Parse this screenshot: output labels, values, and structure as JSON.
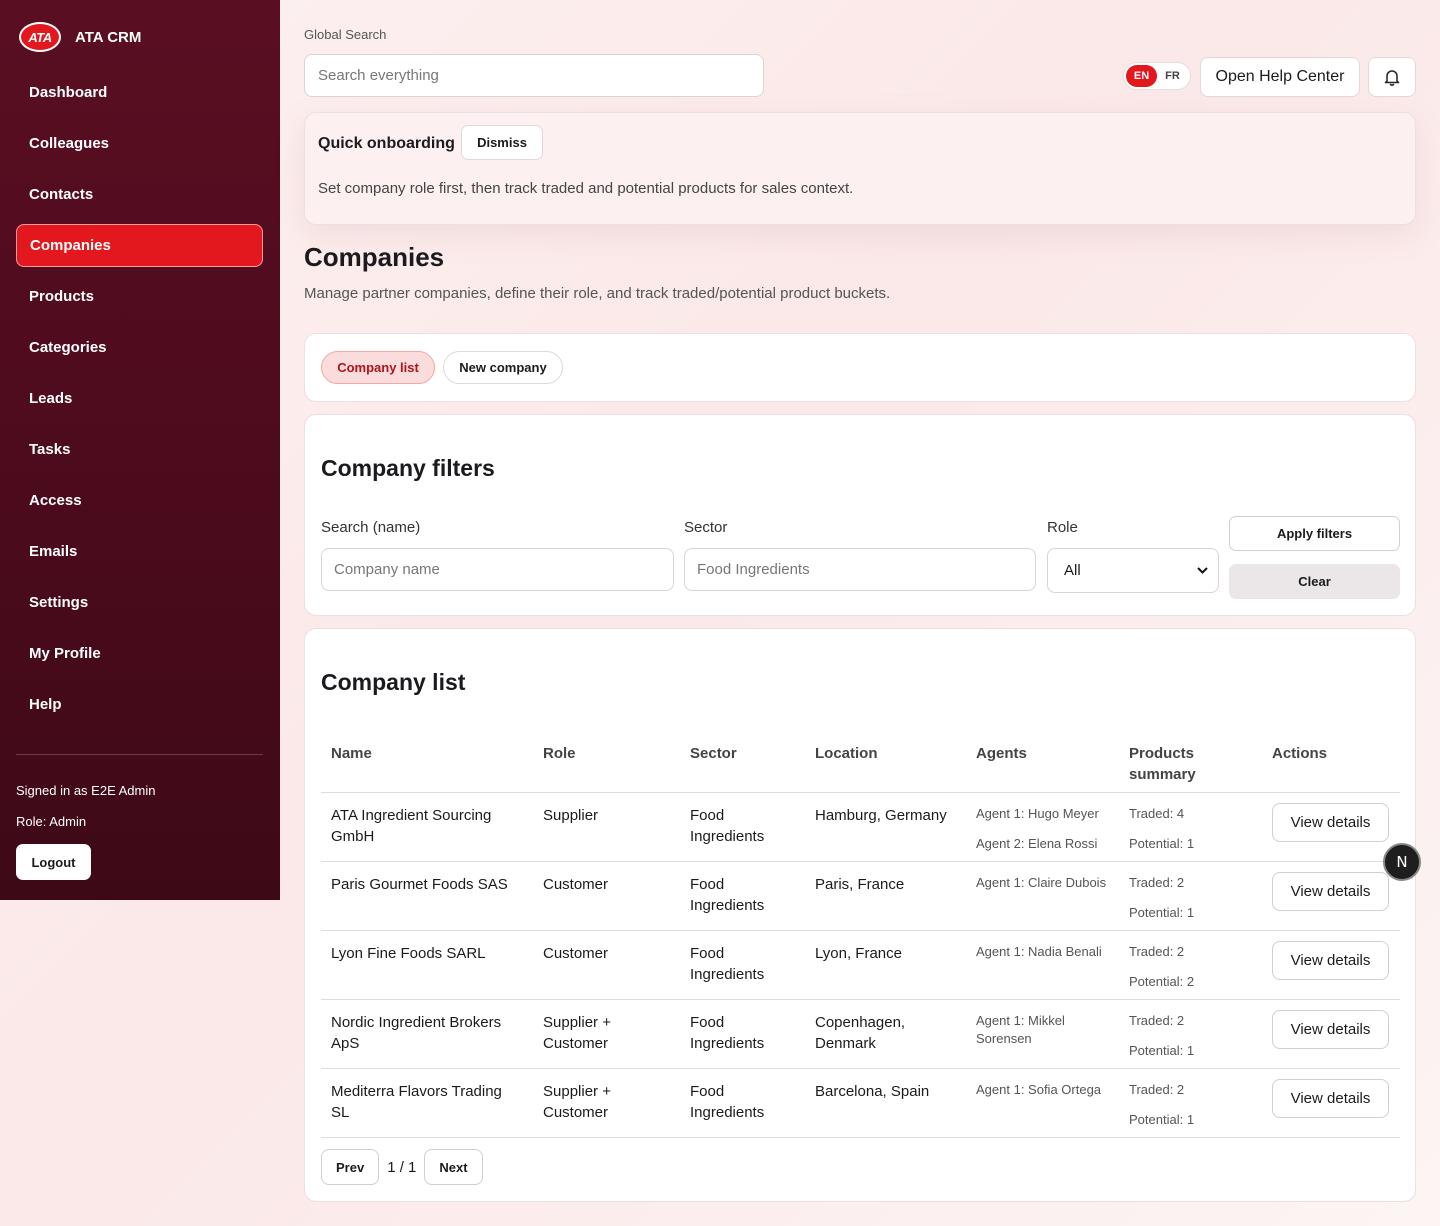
{
  "app": {
    "logo_text": "ATA",
    "name": "ATA CRM"
  },
  "sidebar": {
    "items": [
      {
        "label": "Dashboard"
      },
      {
        "label": "Colleagues"
      },
      {
        "label": "Contacts"
      },
      {
        "label": "Companies",
        "active": true
      },
      {
        "label": "Products"
      },
      {
        "label": "Categories"
      },
      {
        "label": "Leads"
      },
      {
        "label": "Tasks"
      },
      {
        "label": "Access"
      },
      {
        "label": "Emails"
      },
      {
        "label": "Settings"
      },
      {
        "label": "My Profile"
      },
      {
        "label": "Help"
      }
    ],
    "signed_in": "Signed in as E2E Admin",
    "role": "Role: Admin",
    "logout": "Logout"
  },
  "header": {
    "search_label": "Global Search",
    "search_placeholder": "Search everything",
    "lang_en": "EN",
    "lang_fr": "FR",
    "help_button": "Open Help Center",
    "bell_icon": "bell-icon"
  },
  "onboarding": {
    "title": "Quick onboarding",
    "dismiss": "Dismiss",
    "text": "Set company role first, then track traded and potential products for sales context."
  },
  "page": {
    "title": "Companies",
    "subtitle": "Manage partner companies, define their role, and track traded/potential product buckets."
  },
  "tabs": {
    "list": "Company list",
    "new": "New company"
  },
  "filters": {
    "title": "Company filters",
    "name_label": "Search (name)",
    "name_placeholder": "Company name",
    "sector_label": "Sector",
    "sector_value": "Food Ingredients",
    "role_label": "Role",
    "role_value": "All",
    "apply": "Apply filters",
    "clear": "Clear"
  },
  "list": {
    "title": "Company list",
    "columns": {
      "name": "Name",
      "role": "Role",
      "sector": "Sector",
      "location": "Location",
      "agents": "Agents",
      "products": "Products summary",
      "actions": "Actions"
    },
    "view_label": "View details",
    "rows": [
      {
        "name": "ATA Ingredient Sourcing GmbH",
        "role": "Supplier",
        "sector": "Food Ingredients",
        "location": "Hamburg, Germany",
        "agent1": "Agent 1: Hugo Meyer",
        "agent2": "Agent 2: Elena Rossi",
        "traded": "Traded: 4",
        "potential": "Potential: 1"
      },
      {
        "name": "Paris Gourmet Foods SAS",
        "role": "Customer",
        "sector": "Food Ingredients",
        "location": "Paris, France",
        "agent1": "Agent 1: Claire Dubois",
        "agent2": "",
        "traded": "Traded: 2",
        "potential": "Potential: 1"
      },
      {
        "name": "Lyon Fine Foods SARL",
        "role": "Customer",
        "sector": "Food Ingredients",
        "location": "Lyon, France",
        "agent1": "Agent 1: Nadia Benali",
        "agent2": "",
        "traded": "Traded: 2",
        "potential": "Potential: 2"
      },
      {
        "name": "Nordic Ingredient Brokers ApS",
        "role": "Supplier + Customer",
        "sector": "Food Ingredients",
        "location": "Copenhagen, Denmark",
        "agent1": "Agent 1: Mikkel Sorensen",
        "agent2": "",
        "traded": "Traded: 2",
        "potential": "Potential: 1"
      },
      {
        "name": "Mediterra Flavors Trading SL",
        "role": "Supplier + Customer",
        "sector": "Food Ingredients",
        "location": "Barcelona, Spain",
        "agent1": "Agent 1: Sofia Ortega",
        "agent2": "",
        "traded": "Traded: 2",
        "potential": "Potential: 1"
      }
    ],
    "prev": "Prev",
    "page_info": "1 / 1",
    "next": "Next"
  },
  "badge": {
    "letter": "N"
  }
}
